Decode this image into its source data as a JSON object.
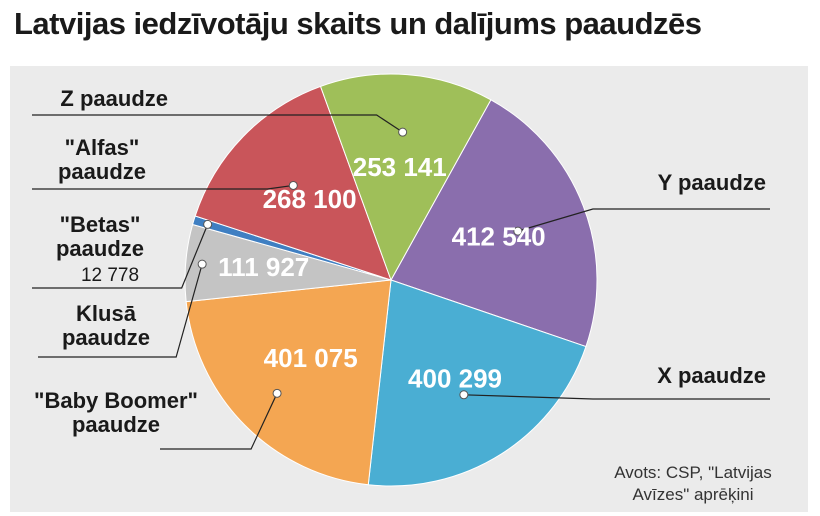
{
  "title": "Latvijas iedzīvotāju skaits un dalījums paaudzēs",
  "source": {
    "line1": "Avots: CSP, \"Latvijas",
    "line2": "Avīzes\" aprēķini"
  },
  "chart_data": {
    "type": "pie",
    "title": "Latvijas iedzīvotāju skaits un dalījums paaudzēs",
    "slices": [
      {
        "name": "Y paaudze",
        "value": 412540,
        "value_label": "412 540",
        "color": "#8a6ead"
      },
      {
        "name": "X paaudze",
        "value": 400299,
        "value_label": "400 299",
        "color": "#4aaed3"
      },
      {
        "name": "\"Baby Boomer\" paaudze",
        "value": 401075,
        "value_label": "401 075",
        "color": "#f4a652"
      },
      {
        "name": "Klusā paaudze",
        "value": 111927,
        "value_label": "111 927",
        "color": "#c4c4c4"
      },
      {
        "name": "\"Betas\" paaudze",
        "value": 12778,
        "value_label": "12 778",
        "color": "#3f7fc2"
      },
      {
        "name": "\"Alfas\" paaudze",
        "value": 268100,
        "value_label": "268 100",
        "color": "#c9555a"
      },
      {
        "name": "Z paaudze",
        "value": 253141,
        "value_label": "253 141",
        "color": "#9fbf59"
      }
    ],
    "label_lines": [
      {
        "slice": 0,
        "lines": [
          "Y paaudze"
        ]
      },
      {
        "slice": 1,
        "lines": [
          "X paaudze"
        ]
      },
      {
        "slice": 2,
        "lines": [
          "\"Baby Boomer\"",
          "paaudze"
        ]
      },
      {
        "slice": 3,
        "lines": [
          "Klusā",
          "paaudze"
        ]
      },
      {
        "slice": 4,
        "lines": [
          "\"Betas\"",
          "paaudze"
        ]
      },
      {
        "slice": 5,
        "lines": [
          "\"Alfas\"",
          "paaudze"
        ]
      },
      {
        "slice": 6,
        "lines": [
          "Z paaudze"
        ]
      }
    ],
    "legend": "none"
  }
}
